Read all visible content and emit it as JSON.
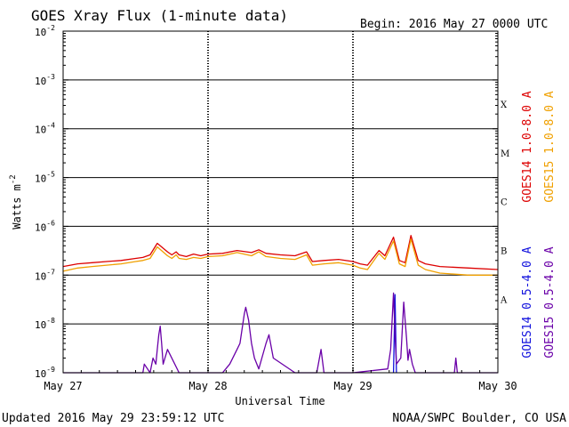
{
  "header": {
    "title": "GOES Xray Flux (1-minute data)",
    "begin": "Begin:  2016 May 27 0000 UTC"
  },
  "footer": {
    "updated": "Updated 2016 May 29 23:59:12 UTC",
    "source": "NOAA/SWPC Boulder, CO USA"
  },
  "colors": {
    "goes14_long": "#dd0000",
    "goes15_long": "#f0a000",
    "goes14_short": "#1010dd",
    "goes15_short": "#6a00a8",
    "grid": "#000000"
  },
  "chart_data": {
    "type": "line",
    "title": "GOES Xray Flux (1-minute data)",
    "xlabel": "Universal Time",
    "ylabel": "Watts m",
    "ylabel_sup": "-2",
    "yscale": "log",
    "ylim": [
      1e-09,
      0.01
    ],
    "y_tick_labels": [
      {
        "base": "10",
        "exp": "-9",
        "value": 1e-09
      },
      {
        "base": "10",
        "exp": "-8",
        "value": 1e-08
      },
      {
        "base": "10",
        "exp": "-7",
        "value": 1e-07
      },
      {
        "base": "10",
        "exp": "-6",
        "value": 1e-06
      },
      {
        "base": "10",
        "exp": "-5",
        "value": 1e-05
      },
      {
        "base": "10",
        "exp": "-4",
        "value": 0.0001
      },
      {
        "base": "10",
        "exp": "-3",
        "value": 0.001
      },
      {
        "base": "10",
        "exp": "-2",
        "value": 0.01
      }
    ],
    "x_unit": "days since 2016 May 27 0000 UTC",
    "xlim": [
      0,
      3
    ],
    "x_tick_labels": [
      {
        "label": "May 27",
        "x": 0
      },
      {
        "label": "May 28",
        "x": 1
      },
      {
        "label": "May 29",
        "x": 2
      },
      {
        "label": "May 30",
        "x": 3
      }
    ],
    "flare_classes": [
      {
        "label": "A",
        "value": 3.2e-08
      },
      {
        "label": "B",
        "value": 3.2e-07
      },
      {
        "label": "C",
        "value": 3.2e-06
      },
      {
        "label": "M",
        "value": 3.2e-05
      },
      {
        "label": "X",
        "value": 0.00032
      }
    ],
    "grid": true,
    "legend_position": "right",
    "series": [
      {
        "name": "GOES14 1.0-8.0 A",
        "color": "#dd0000",
        "x": [
          0.0,
          0.1,
          0.2,
          0.3,
          0.4,
          0.5,
          0.55,
          0.6,
          0.65,
          0.72,
          0.75,
          0.78,
          0.8,
          0.85,
          0.9,
          0.95,
          1.0,
          1.1,
          1.2,
          1.3,
          1.35,
          1.4,
          1.5,
          1.6,
          1.68,
          1.72,
          1.8,
          1.9,
          2.0,
          2.05,
          2.1,
          2.18,
          2.22,
          2.28,
          2.32,
          2.36,
          2.4,
          2.45,
          2.5,
          2.6,
          2.8,
          3.0
        ],
        "y": [
          1.5e-07,
          1.7e-07,
          1.8e-07,
          1.9e-07,
          2e-07,
          2.2e-07,
          2.3e-07,
          2.6e-07,
          4.5e-07,
          3e-07,
          2.6e-07,
          3e-07,
          2.6e-07,
          2.4e-07,
          2.7e-07,
          2.5e-07,
          2.7e-07,
          2.8e-07,
          3.2e-07,
          2.9e-07,
          3.3e-07,
          2.8e-07,
          2.6e-07,
          2.5e-07,
          3e-07,
          1.9e-07,
          2e-07,
          2.1e-07,
          1.9e-07,
          1.7e-07,
          1.6e-07,
          3.2e-07,
          2.5e-07,
          6e-07,
          2e-07,
          1.8e-07,
          6.5e-07,
          2e-07,
          1.7e-07,
          1.5e-07,
          1.4e-07,
          1.3e-07
        ]
      },
      {
        "name": "GOES15 1.0-8.0 A",
        "color": "#f0a000",
        "x": [
          0.0,
          0.1,
          0.2,
          0.3,
          0.4,
          0.5,
          0.55,
          0.6,
          0.65,
          0.72,
          0.75,
          0.78,
          0.8,
          0.85,
          0.9,
          0.95,
          1.0,
          1.1,
          1.2,
          1.3,
          1.35,
          1.4,
          1.5,
          1.6,
          1.68,
          1.72,
          1.8,
          1.9,
          2.0,
          2.05,
          2.1,
          2.18,
          2.22,
          2.28,
          2.32,
          2.36,
          2.4,
          2.45,
          2.5,
          2.6,
          2.8,
          3.0
        ],
        "y": [
          1.2e-07,
          1.4e-07,
          1.5e-07,
          1.6e-07,
          1.7e-07,
          1.9e-07,
          2e-07,
          2.2e-07,
          3.8e-07,
          2.5e-07,
          2.2e-07,
          2.6e-07,
          2.2e-07,
          2.1e-07,
          2.3e-07,
          2.2e-07,
          2.4e-07,
          2.5e-07,
          2.9e-07,
          2.5e-07,
          3e-07,
          2.4e-07,
          2.2e-07,
          2.1e-07,
          2.6e-07,
          1.6e-07,
          1.7e-07,
          1.8e-07,
          1.6e-07,
          1.4e-07,
          1.3e-07,
          2.8e-07,
          2.1e-07,
          5e-07,
          1.7e-07,
          1.5e-07,
          5.5e-07,
          1.6e-07,
          1.3e-07,
          1.1e-07,
          1e-07,
          1e-07
        ]
      },
      {
        "name": "GOES14 0.5-4.0 A",
        "color": "#1010dd",
        "x": [
          2.28,
          2.29,
          2.3
        ],
        "y": [
          1e-09,
          4e-08,
          1e-09
        ]
      },
      {
        "name": "GOES15 0.5-4.0 A",
        "color": "#6a00a8",
        "x": [
          0.0,
          0.55,
          0.56,
          0.6,
          0.62,
          0.64,
          0.65,
          0.66,
          0.67,
          0.68,
          0.69,
          0.72,
          0.8,
          1.1,
          1.15,
          1.2,
          1.22,
          1.25,
          1.26,
          1.28,
          1.3,
          1.32,
          1.35,
          1.4,
          1.42,
          1.45,
          1.6,
          1.75,
          1.78,
          1.8,
          2.0,
          2.24,
          2.26,
          2.28,
          2.29,
          2.3,
          2.33,
          2.35,
          2.37,
          2.38,
          2.39,
          2.41,
          2.43,
          2.6,
          2.7,
          2.71,
          2.72,
          3.0
        ],
        "y": [
          1e-09,
          1e-09,
          1.5e-09,
          1e-09,
          2e-09,
          1.5e-09,
          3e-09,
          6e-09,
          9e-09,
          4e-09,
          1.5e-09,
          3e-09,
          1e-09,
          1e-09,
          1.5e-09,
          3e-09,
          4e-09,
          1.6e-08,
          2.2e-08,
          1.2e-08,
          4e-09,
          2e-09,
          1.2e-09,
          4e-09,
          6e-09,
          2e-09,
          1e-09,
          1e-09,
          3e-09,
          1e-09,
          1e-09,
          1.2e-09,
          3e-09,
          4.3e-08,
          6e-09,
          1.5e-09,
          2e-09,
          2.8e-08,
          5e-09,
          1.8e-09,
          3e-09,
          1.5e-09,
          1e-09,
          1e-09,
          1e-09,
          2e-09,
          1e-09,
          1e-09
        ]
      }
    ]
  }
}
